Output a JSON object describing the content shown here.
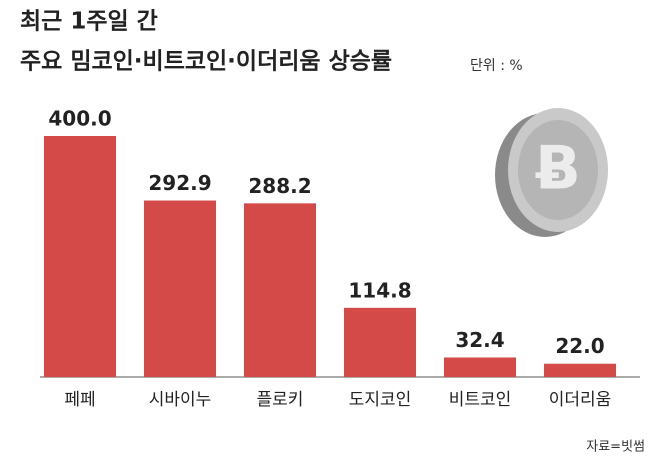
{
  "chart_data": {
    "type": "bar",
    "title": "최근 1주일 간",
    "subtitle": "주요 밈코인·비트코인·이더리움 상승률",
    "unit_label": "단위 : %",
    "source": "자료=빗썸",
    "categories": [
      "페페",
      "시바이누",
      "플로키",
      "도지코인",
      "비트코인",
      "이더리움"
    ],
    "values": [
      400,
      292.9,
      288.2,
      114.8,
      32.4,
      22
    ],
    "value_labels": [
      "400.0",
      "292.9",
      "288.2",
      "114.8",
      "32.4",
      "22.0"
    ],
    "color": "#d34a49",
    "ylim": [
      0,
      400
    ]
  }
}
